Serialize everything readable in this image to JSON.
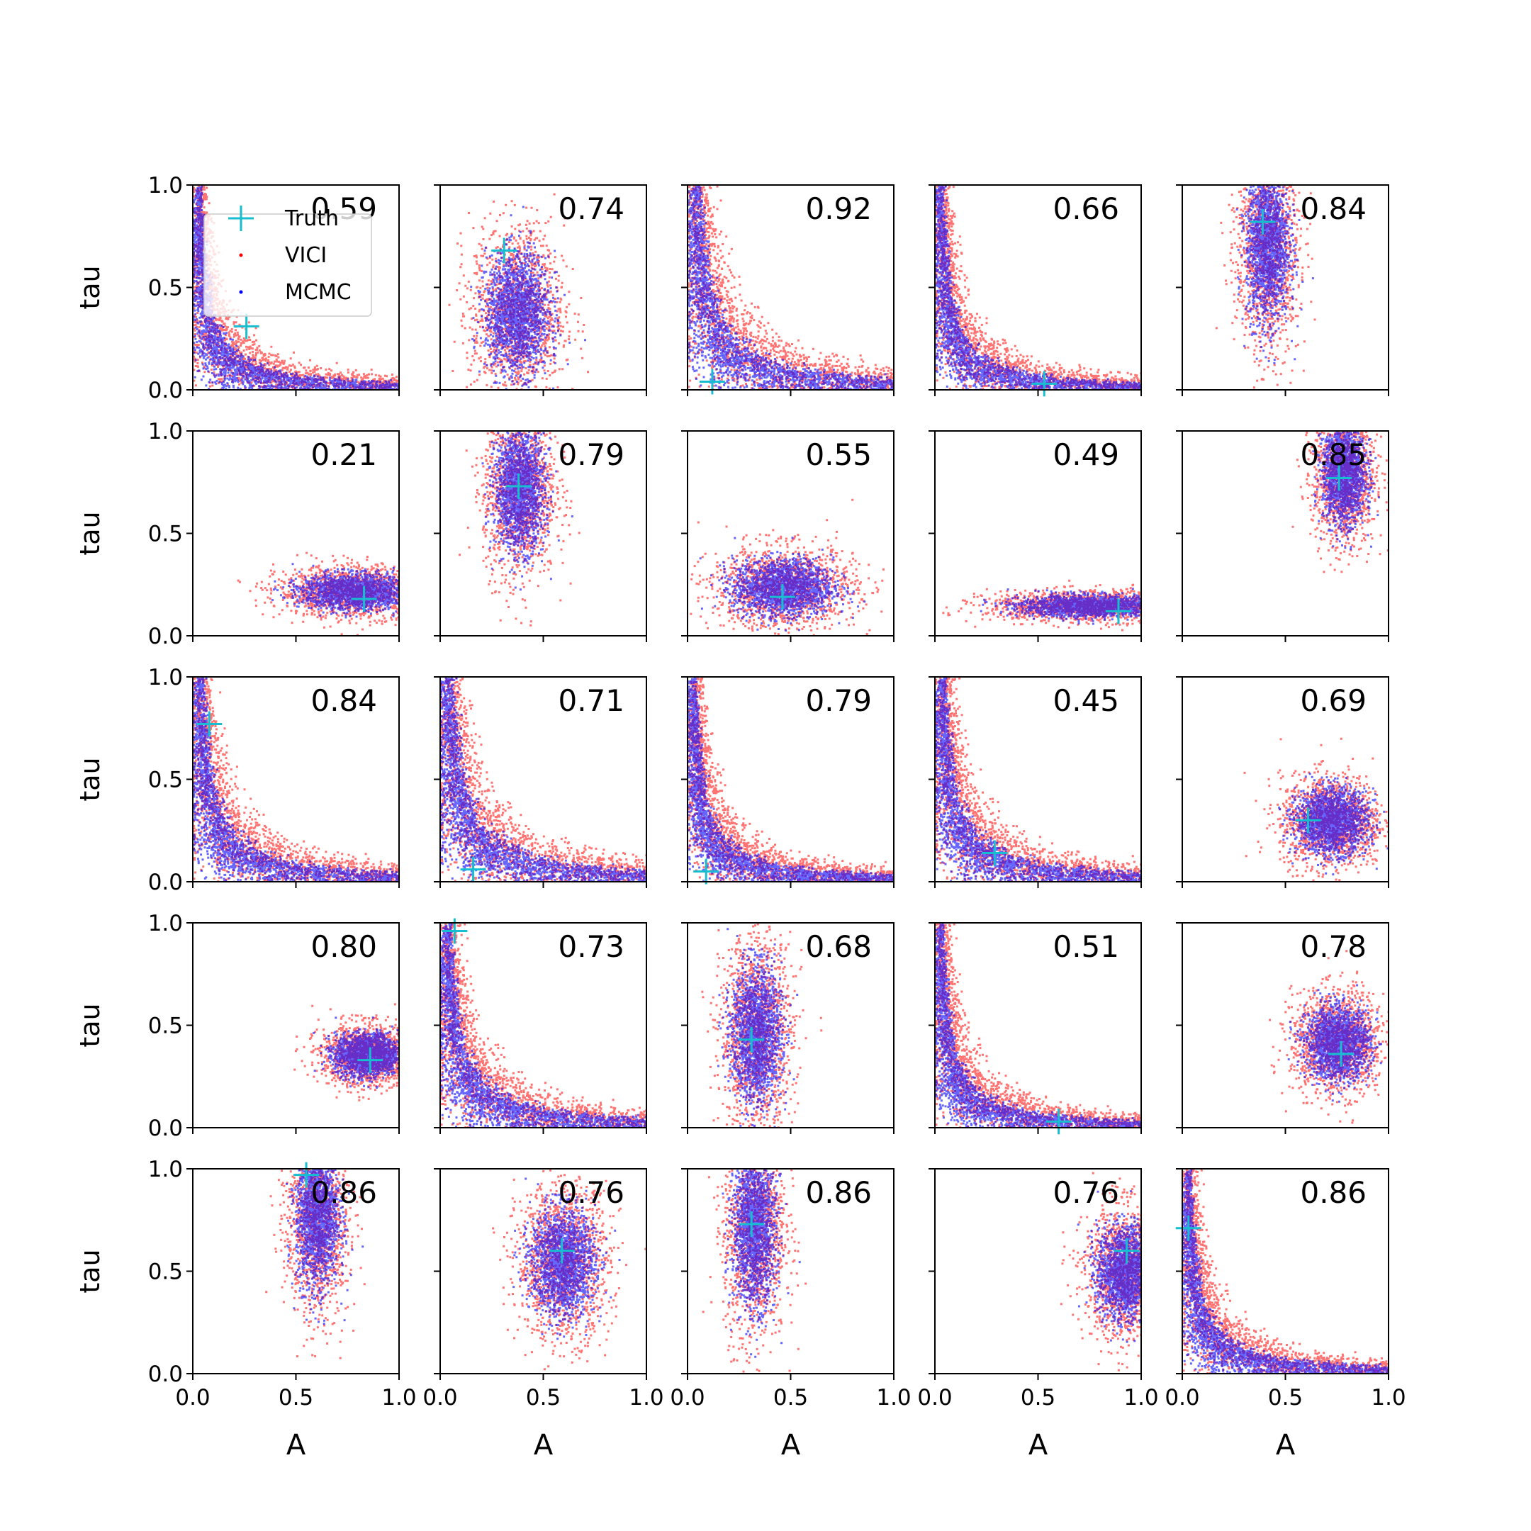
{
  "legend": {
    "entries": [
      {
        "label": "Truth",
        "marker": "plus",
        "color": "#17becf"
      },
      {
        "label": "VICI",
        "marker": "dot",
        "color": "#ff0000"
      },
      {
        "label": "MCMC",
        "marker": "dot",
        "color": "#0000ff"
      }
    ],
    "placement": "upper-left of first panel"
  },
  "axes": {
    "xlabel": "A",
    "ylabel": "tau",
    "xlim": [
      0,
      1
    ],
    "ylim": [
      0,
      1
    ],
    "ticks": [
      0.0,
      0.5,
      1.0
    ],
    "tick_labels": [
      "0.0",
      "0.5",
      "1.0"
    ]
  },
  "colors": {
    "vici": "#ff0000",
    "mcmc": "#0000ff",
    "truth": "#17becf",
    "axis": "#000000"
  },
  "chart_data": {
    "type": "scatter",
    "layout": "5x5 grid",
    "panels": [
      {
        "row": 0,
        "col": 0,
        "score": "0.59",
        "truth": {
          "x": 0.26,
          "y": 0.31
        },
        "shape": "L"
      },
      {
        "row": 0,
        "col": 1,
        "score": "0.74",
        "truth": {
          "x": 0.31,
          "y": 0.68
        },
        "shape": "blob",
        "center": [
          0.37,
          0.38
        ],
        "spread": [
          0.09,
          0.17
        ]
      },
      {
        "row": 0,
        "col": 2,
        "score": "0.92",
        "truth": {
          "x": 0.12,
          "y": 0.04
        },
        "shape": "L"
      },
      {
        "row": 0,
        "col": 3,
        "score": "0.66",
        "truth": {
          "x": 0.53,
          "y": 0.03
        },
        "shape": "L"
      },
      {
        "row": 0,
        "col": 4,
        "score": "0.84",
        "truth": {
          "x": 0.39,
          "y": 0.82
        },
        "shape": "blob",
        "center": [
          0.41,
          0.72
        ],
        "spread": [
          0.06,
          0.22
        ]
      },
      {
        "row": 1,
        "col": 0,
        "score": "0.21",
        "truth": {
          "x": 0.83,
          "y": 0.18
        },
        "shape": "blob",
        "center": [
          0.78,
          0.22
        ],
        "spread": [
          0.15,
          0.05
        ]
      },
      {
        "row": 1,
        "col": 1,
        "score": "0.79",
        "truth": {
          "x": 0.38,
          "y": 0.73
        },
        "shape": "blob",
        "center": [
          0.38,
          0.72
        ],
        "spread": [
          0.07,
          0.17
        ]
      },
      {
        "row": 1,
        "col": 2,
        "score": "0.55",
        "truth": {
          "x": 0.46,
          "y": 0.19
        },
        "shape": "blob",
        "center": [
          0.46,
          0.24
        ],
        "spread": [
          0.14,
          0.08
        ]
      },
      {
        "row": 1,
        "col": 3,
        "score": "0.49",
        "truth": {
          "x": 0.89,
          "y": 0.12
        },
        "shape": "blob",
        "center": [
          0.75,
          0.15
        ],
        "spread": [
          0.2,
          0.03
        ]
      },
      {
        "row": 1,
        "col": 4,
        "score": "0.85",
        "truth": {
          "x": 0.76,
          "y": 0.77
        },
        "shape": "blob",
        "center": [
          0.78,
          0.8
        ],
        "spread": [
          0.06,
          0.14
        ]
      },
      {
        "row": 2,
        "col": 0,
        "score": "0.84",
        "truth": {
          "x": 0.08,
          "y": 0.77
        },
        "shape": "L"
      },
      {
        "row": 2,
        "col": 1,
        "score": "0.71",
        "truth": {
          "x": 0.16,
          "y": 0.06
        },
        "shape": "L"
      },
      {
        "row": 2,
        "col": 2,
        "score": "0.79",
        "truth": {
          "x": 0.09,
          "y": 0.05
        },
        "shape": "L"
      },
      {
        "row": 2,
        "col": 3,
        "score": "0.45",
        "truth": {
          "x": 0.29,
          "y": 0.14
        },
        "shape": "L"
      },
      {
        "row": 2,
        "col": 4,
        "score": "0.69",
        "truth": {
          "x": 0.61,
          "y": 0.3
        },
        "shape": "blob",
        "center": [
          0.72,
          0.3
        ],
        "spread": [
          0.1,
          0.09
        ]
      },
      {
        "row": 3,
        "col": 0,
        "score": "0.80",
        "truth": {
          "x": 0.86,
          "y": 0.33
        },
        "shape": "blob",
        "center": [
          0.84,
          0.36
        ],
        "spread": [
          0.09,
          0.06
        ]
      },
      {
        "row": 3,
        "col": 1,
        "score": "0.73",
        "truth": {
          "x": 0.07,
          "y": 0.96
        },
        "shape": "L"
      },
      {
        "row": 3,
        "col": 2,
        "score": "0.68",
        "truth": {
          "x": 0.31,
          "y": 0.43
        },
        "shape": "blob",
        "center": [
          0.33,
          0.46
        ],
        "spread": [
          0.07,
          0.19
        ]
      },
      {
        "row": 3,
        "col": 3,
        "score": "0.51",
        "truth": {
          "x": 0.6,
          "y": 0.03
        },
        "shape": "L"
      },
      {
        "row": 3,
        "col": 4,
        "score": "0.78",
        "truth": {
          "x": 0.77,
          "y": 0.36
        },
        "shape": "blob",
        "center": [
          0.75,
          0.42
        ],
        "spread": [
          0.09,
          0.1
        ]
      },
      {
        "row": 4,
        "col": 0,
        "score": "0.86",
        "truth": {
          "x": 0.55,
          "y": 0.97
        },
        "shape": "blob",
        "center": [
          0.6,
          0.78
        ],
        "spread": [
          0.06,
          0.2
        ]
      },
      {
        "row": 4,
        "col": 1,
        "score": "0.76",
        "truth": {
          "x": 0.59,
          "y": 0.6
        },
        "shape": "blob",
        "center": [
          0.59,
          0.55
        ],
        "spread": [
          0.09,
          0.15
        ]
      },
      {
        "row": 4,
        "col": 2,
        "score": "0.86",
        "truth": {
          "x": 0.31,
          "y": 0.73
        },
        "shape": "blob",
        "center": [
          0.32,
          0.72
        ],
        "spread": [
          0.06,
          0.22
        ]
      },
      {
        "row": 4,
        "col": 3,
        "score": "0.76",
        "truth": {
          "x": 0.93,
          "y": 0.6
        },
        "shape": "blob",
        "center": [
          0.92,
          0.5
        ],
        "spread": [
          0.08,
          0.13
        ]
      },
      {
        "row": 4,
        "col": 4,
        "score": "0.86",
        "truth": {
          "x": 0.03,
          "y": 0.71
        },
        "shape": "L"
      }
    ]
  }
}
